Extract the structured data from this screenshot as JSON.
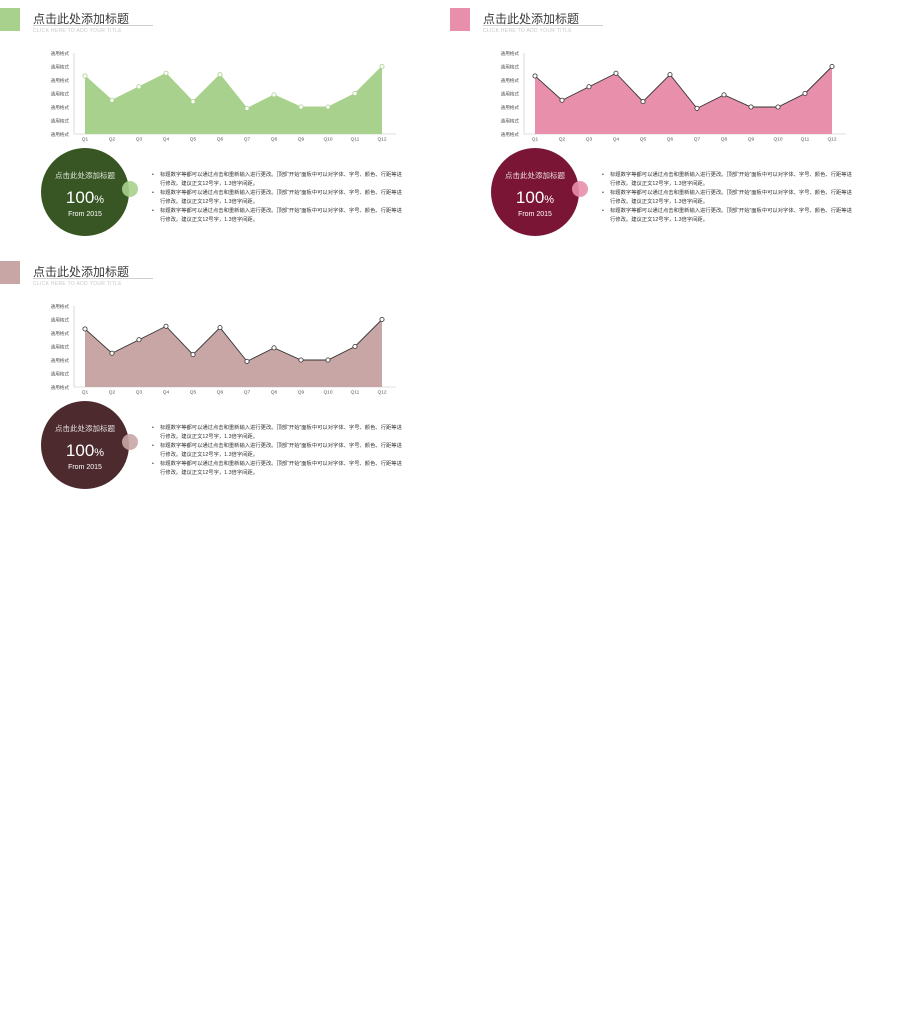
{
  "panels": [
    {
      "title": "点击此处添加标题",
      "subtitle": "CLICK HERE TO ADD YOUR TITLE",
      "colors": {
        "accent": "#a8d18d",
        "area": "#a8d18d",
        "line": "#a8d18d",
        "marker_fill": "#ffffff",
        "marker_stroke": "#a8d18d",
        "circle": "#375623",
        "knob": "#a8d18d"
      },
      "circle": {
        "title": "点击此处添加标题",
        "value": "100",
        "unit": "%",
        "subtitle": "From 2015"
      },
      "bullets": [
        "标题数字等都可以通过点击和重新输入进行更改。顶部“开始”面板中可以对字体、字号、颜色、行距等进行修改。建议正文12号字，1.3倍字间距。",
        "标题数字等都可以通过点击和重新输入进行更改。顶部“开始”面板中可以对字体、字号、颜色、行距等进行修改。建议正文12号字，1.3倍字间距。",
        "标题数字等都可以通过点击和重新输入进行更改。顶部“开始”面板中可以对字体、字号、颜色、行距等进行修改。建议正文12号字，1.3倍字间距。"
      ]
    },
    {
      "title": "点击此处添加标题",
      "subtitle": "CLICK HERE TO ADD YOUR TITLE",
      "colors": {
        "accent": "#e88fab",
        "area": "#e88fab",
        "line": "#333333",
        "marker_fill": "#ffffff",
        "marker_stroke": "#333333",
        "circle": "#7b1535",
        "knob": "#e88fab"
      },
      "circle": {
        "title": "点击此处添加标题",
        "value": "100",
        "unit": "%",
        "subtitle": "From 2015"
      },
      "bullets": [
        "标题数字等都可以通过点击和重新输入进行更改。顶部“开始”面板中可以对字体、字号、颜色、行距等进行修改。建议正文12号字，1.3倍字间距。",
        "标题数字等都可以通过点击和重新输入进行更改。顶部“开始”面板中可以对字体、字号、颜色、行距等进行修改。建议正文12号字，1.3倍字间距。",
        "标题数字等都可以通过点击和重新输入进行更改。顶部“开始”面板中可以对字体、字号、颜色、行距等进行修改。建议正文12号字，1.3倍字间距。"
      ]
    },
    {
      "title": "点击此处添加标题",
      "subtitle": "CLICK HERE TO ADD YOUR TITLE",
      "colors": {
        "accent": "#c9a6a6",
        "area": "#c9a6a6",
        "line": "#333333",
        "marker_fill": "#ffffff",
        "marker_stroke": "#333333",
        "circle": "#4d2a2e",
        "knob": "#c9a6a6"
      },
      "circle": {
        "title": "点击此处添加标题",
        "value": "100",
        "unit": "%",
        "subtitle": "From 2015"
      },
      "bullets": [
        "标题数字等都可以通过点击和重新输入进行更改。顶部“开始”面板中可以对字体、字号、颜色、行距等进行修改。建议正文12号字，1.3倍字间距。",
        "标题数字等都可以通过点击和重新输入进行更改。顶部“开始”面板中可以对字体、字号、颜色、行距等进行修改。建议正文12号字，1.3倍字间距。",
        "标题数字等都可以通过点击和重新输入进行更改。顶部“开始”面板中可以对字体、字号、颜色、行距等进行修改。建议正文12号字，1.3倍字间距。"
      ]
    }
  ],
  "chart_data": [
    {
      "type": "area",
      "categories": [
        "Q1",
        "Q2",
        "Q3",
        "Q4",
        "Q5",
        "Q6",
        "Q7",
        "Q8",
        "Q9",
        "Q10",
        "Q11",
        "Q12"
      ],
      "series": [
        {
          "values": [
            4.3,
            2.5,
            3.5,
            4.5,
            2.4,
            4.4,
            1.9,
            2.9,
            2.0,
            2.0,
            3.0,
            5.0
          ]
        }
      ],
      "ytick_labels": [
        "通用格式",
        "通用格式",
        "通用格式",
        "通用格式",
        "通用格式",
        "通用格式",
        "通用格式"
      ],
      "ylim": [
        0,
        6
      ],
      "grid": false
    },
    {
      "type": "area",
      "categories": [
        "Q1",
        "Q2",
        "Q3",
        "Q4",
        "Q5",
        "Q6",
        "Q7",
        "Q8",
        "Q9",
        "Q10",
        "Q11",
        "Q12"
      ],
      "series": [
        {
          "values": [
            4.3,
            2.5,
            3.5,
            4.5,
            2.4,
            4.4,
            1.9,
            2.9,
            2.0,
            2.0,
            3.0,
            5.0
          ]
        }
      ],
      "ytick_labels": [
        "通用格式",
        "通用格式",
        "通用格式",
        "通用格式",
        "通用格式",
        "通用格式",
        "通用格式"
      ],
      "ylim": [
        0,
        6
      ],
      "grid": false
    },
    {
      "type": "area",
      "categories": [
        "Q1",
        "Q2",
        "Q3",
        "Q4",
        "Q5",
        "Q6",
        "Q7",
        "Q8",
        "Q9",
        "Q10",
        "Q11",
        "Q12"
      ],
      "series": [
        {
          "values": [
            4.3,
            2.5,
            3.5,
            4.5,
            2.4,
            4.4,
            1.9,
            2.9,
            2.0,
            2.0,
            3.0,
            5.0
          ]
        }
      ],
      "ytick_labels": [
        "通用格式",
        "通用格式",
        "通用格式",
        "通用格式",
        "通用格式",
        "通用格式",
        "通用格式"
      ],
      "ylim": [
        0,
        6
      ],
      "grid": false
    }
  ]
}
